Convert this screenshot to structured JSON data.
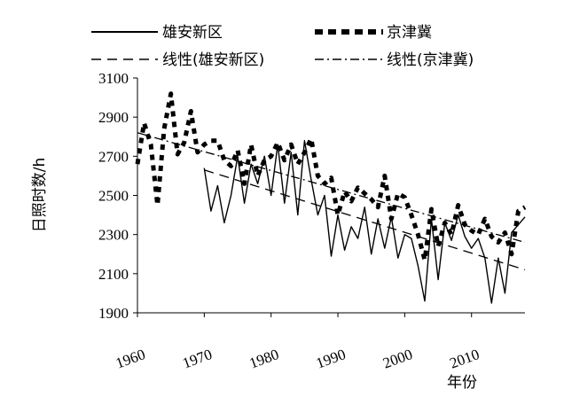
{
  "chart_data": {
    "type": "line",
    "xlabel": "年份",
    "ylabel": "日照时数/h",
    "xlim": [
      1960,
      2018
    ],
    "ylim": [
      1900,
      3100
    ],
    "x_ticks": [
      "1960",
      "1970",
      "1980",
      "1990",
      "2000",
      "2010"
    ],
    "y_ticks": [
      "1900",
      "2100",
      "2300",
      "2500",
      "2700",
      "2900",
      "3100"
    ],
    "grid": false,
    "legend": [
      "雄安新区",
      "京津冀",
      "线性(雄安新区)",
      "线性(京津冀)"
    ],
    "series": [
      {
        "name": "雄安新区",
        "style": "solid",
        "x": [
          1970,
          1971,
          1972,
          1973,
          1974,
          1975,
          1976,
          1977,
          1978,
          1979,
          1980,
          1981,
          1982,
          1983,
          1984,
          1985,
          1986,
          1987,
          1988,
          1989,
          1990,
          1991,
          1992,
          1993,
          1994,
          1995,
          1996,
          1997,
          1998,
          1999,
          2000,
          2001,
          2002,
          2003,
          2004,
          2005,
          2006,
          2007,
          2008,
          2009,
          2010,
          2011,
          2012,
          2013,
          2014,
          2015,
          2016,
          2017,
          2018
        ],
        "values": [
          2640,
          2420,
          2550,
          2360,
          2500,
          2700,
          2460,
          2660,
          2560,
          2700,
          2500,
          2760,
          2460,
          2720,
          2400,
          2780,
          2580,
          2400,
          2500,
          2190,
          2400,
          2220,
          2340,
          2280,
          2440,
          2200,
          2380,
          2230,
          2390,
          2180,
          2300,
          2280,
          2140,
          1960,
          2380,
          2070,
          2360,
          2270,
          2400,
          2290,
          2230,
          2280,
          2180,
          1950,
          2180,
          2000,
          2310,
          2350,
          2390
        ]
      },
      {
        "name": "京津冀",
        "style": "dash",
        "x": [
          1960,
          1961,
          1962,
          1963,
          1964,
          1965,
          1966,
          1967,
          1968,
          1969,
          1970,
          1971,
          1972,
          1973,
          1974,
          1975,
          1976,
          1977,
          1978,
          1979,
          1980,
          1981,
          1982,
          1983,
          1984,
          1985,
          1986,
          1987,
          1988,
          1989,
          1990,
          1991,
          1992,
          1993,
          1994,
          1995,
          1996,
          1997,
          1998,
          1999,
          2000,
          2001,
          2002,
          2003,
          2004,
          2005,
          2006,
          2007,
          2008,
          2009,
          2010,
          2011,
          2012,
          2013,
          2014,
          2015,
          2016,
          2017,
          2018
        ],
        "values": [
          2660,
          2870,
          2760,
          2450,
          2840,
          3020,
          2710,
          2770,
          2930,
          2720,
          2760,
          2780,
          2780,
          2680,
          2650,
          2730,
          2560,
          2760,
          2600,
          2680,
          2700,
          2770,
          2680,
          2760,
          2660,
          2720,
          2790,
          2600,
          2560,
          2590,
          2400,
          2520,
          2470,
          2540,
          2510,
          2480,
          2440,
          2600,
          2380,
          2510,
          2490,
          2400,
          2300,
          2170,
          2430,
          2240,
          2360,
          2300,
          2450,
          2350,
          2320,
          2300,
          2380,
          2290,
          2260,
          2310,
          2200,
          2420,
          2440
        ]
      },
      {
        "name": "线性(雄安新区)",
        "style": "long-dash",
        "x": [
          1970,
          2018
        ],
        "values": [
          2630,
          2120
        ]
      },
      {
        "name": "线性(京津冀)",
        "style": "dash-dot",
        "x": [
          1960,
          2018
        ],
        "values": [
          2820,
          2260
        ]
      }
    ]
  }
}
